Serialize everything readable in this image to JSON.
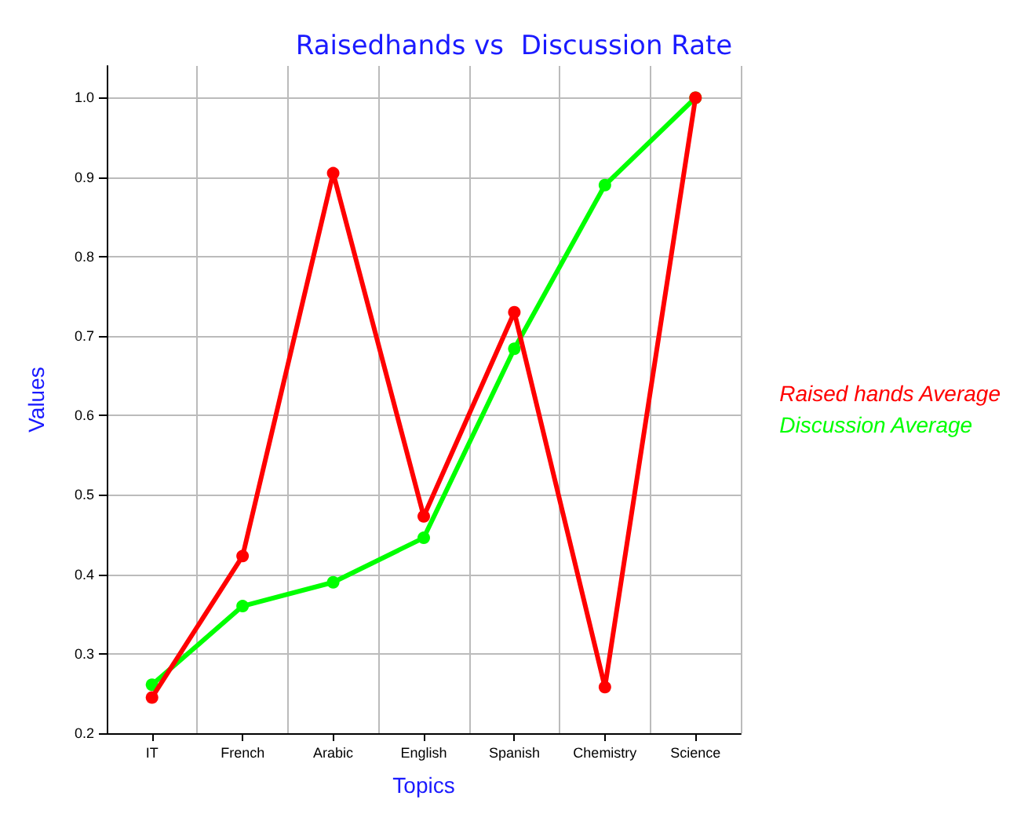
{
  "chart_data": {
    "type": "line",
    "title": "Raisedhands vs  Discussion Rate",
    "xlabel": "Topics",
    "ylabel": "Values",
    "categories": [
      "IT",
      "French",
      "Arabic",
      "English",
      "Spanish",
      "Chemistry",
      "Science"
    ],
    "series": [
      {
        "name": "Raised hands Average",
        "color": "#ff0000",
        "values": [
          0.245,
          0.423,
          0.905,
          0.473,
          0.73,
          0.258,
          1.0
        ]
      },
      {
        "name": "Discussion Average",
        "color": "#00ff00",
        "values": [
          0.261,
          0.36,
          0.39,
          0.446,
          0.684,
          0.89,
          1.0
        ]
      }
    ],
    "ylim": [
      0.2,
      1.04
    ],
    "yticks": [
      0.2,
      0.3,
      0.4,
      0.5,
      0.6,
      0.7,
      0.8,
      0.9,
      {
        "value": 1,
        "label": "1.0"
      }
    ],
    "grid": true,
    "legend": "right",
    "marker": "circle",
    "line_style": "solid"
  }
}
